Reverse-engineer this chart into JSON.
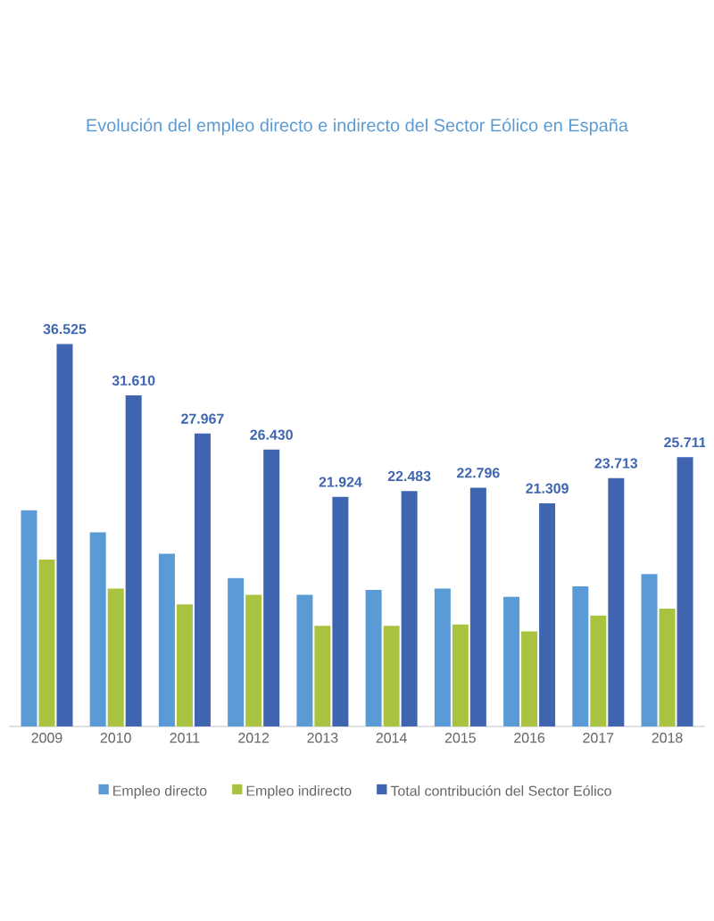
{
  "chart_data": {
    "type": "bar",
    "title": "Evolución del empleo directo e indirecto del Sector Eólico en España",
    "categories": [
      "2009",
      "2010",
      "2011",
      "2012",
      "2013",
      "2014",
      "2015",
      "2016",
      "2017",
      "2018"
    ],
    "series": [
      {
        "name": "Empleo directo",
        "color": "#5b9bd5",
        "values": [
          20640,
          18530,
          16480,
          14160,
          12570,
          13040,
          13170,
          12370,
          13370,
          14560
        ]
      },
      {
        "name": "Empleo indirecto",
        "color": "#a9c23f",
        "values": [
          15940,
          13170,
          11650,
          12570,
          9600,
          9600,
          9730,
          9070,
          10590,
          11250
        ]
      },
      {
        "name": "Total contribución del Sector Eólico",
        "color": "#3f65b0",
        "values": [
          36525,
          31610,
          27967,
          26430,
          21924,
          22483,
          22796,
          21309,
          23713,
          25711
        ],
        "value_labels": [
          "36.525",
          "31.610",
          "27.967",
          "26.430",
          "21.924",
          "22.483",
          "22.796",
          "21.309",
          "23.713",
          "25.711"
        ]
      }
    ],
    "legend": "bottom"
  }
}
